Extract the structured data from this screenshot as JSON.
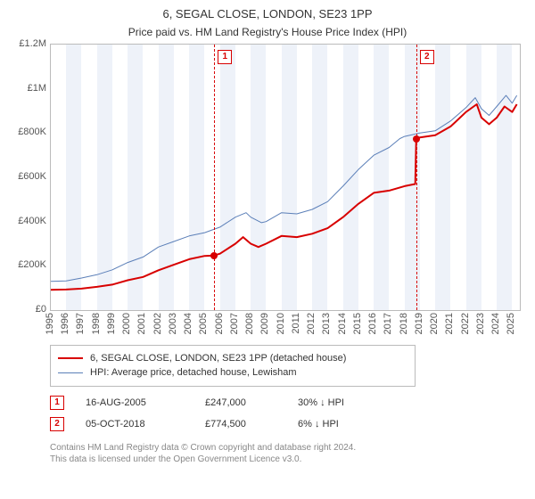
{
  "title": "6, SEGAL CLOSE, LONDON, SE23 1PP",
  "subtitle": "Price paid vs. HM Land Registry's House Price Index (HPI)",
  "chart": {
    "type": "line",
    "background_color": "#ffffff",
    "band_color": "#eef2f9",
    "grid_color": "#bbbbbb",
    "axis_text_color": "#555555",
    "axis_fontsize": 11,
    "xlim": [
      1995,
      2025.5
    ],
    "ylim": [
      0,
      1200000
    ],
    "x_ticks": [
      1995,
      1996,
      1997,
      1998,
      1999,
      2000,
      2001,
      2002,
      2003,
      2004,
      2005,
      2006,
      2007,
      2008,
      2009,
      2010,
      2011,
      2012,
      2013,
      2014,
      2015,
      2016,
      2017,
      2018,
      2019,
      2020,
      2021,
      2022,
      2023,
      2024,
      2025
    ],
    "y_ticks": [
      {
        "v": 0,
        "label": "£0"
      },
      {
        "v": 200000,
        "label": "£200K"
      },
      {
        "v": 400000,
        "label": "£400K"
      },
      {
        "v": 600000,
        "label": "£600K"
      },
      {
        "v": 800000,
        "label": "£800K"
      },
      {
        "v": 1000000,
        "label": "£1M"
      },
      {
        "v": 1200000,
        "label": "£1.2M"
      }
    ],
    "series": [
      {
        "id": "property",
        "label": "6, SEGAL CLOSE, LONDON, SE23 1PP (detached house)",
        "color": "#d80000",
        "width": 2,
        "points": [
          [
            1995,
            92000
          ],
          [
            1996,
            93000
          ],
          [
            1997,
            97000
          ],
          [
            1998,
            105000
          ],
          [
            1999,
            115000
          ],
          [
            2000,
            135000
          ],
          [
            2001,
            150000
          ],
          [
            2002,
            180000
          ],
          [
            2003,
            205000
          ],
          [
            2004,
            230000
          ],
          [
            2005,
            245000
          ],
          [
            2005.63,
            247000
          ],
          [
            2006,
            255000
          ],
          [
            2007,
            300000
          ],
          [
            2007.5,
            330000
          ],
          [
            2008,
            300000
          ],
          [
            2008.5,
            285000
          ],
          [
            2009,
            300000
          ],
          [
            2010,
            335000
          ],
          [
            2011,
            330000
          ],
          [
            2012,
            345000
          ],
          [
            2013,
            370000
          ],
          [
            2014,
            420000
          ],
          [
            2015,
            480000
          ],
          [
            2016,
            530000
          ],
          [
            2017,
            540000
          ],
          [
            2018,
            560000
          ],
          [
            2018.7,
            570000
          ],
          [
            2018.76,
            774500
          ],
          [
            2019,
            780000
          ],
          [
            2020,
            790000
          ],
          [
            2021,
            830000
          ],
          [
            2022,
            895000
          ],
          [
            2022.7,
            930000
          ],
          [
            2023,
            870000
          ],
          [
            2023.5,
            840000
          ],
          [
            2024,
            870000
          ],
          [
            2024.5,
            920000
          ],
          [
            2025,
            895000
          ],
          [
            2025.3,
            930000
          ]
        ]
      },
      {
        "id": "hpi",
        "label": "HPI: Average price, detached house, Lewisham",
        "color": "#5b7fb8",
        "width": 1,
        "points": [
          [
            1995,
            130000
          ],
          [
            1996,
            132000
          ],
          [
            1997,
            145000
          ],
          [
            1998,
            160000
          ],
          [
            1999,
            182000
          ],
          [
            2000,
            215000
          ],
          [
            2001,
            240000
          ],
          [
            2002,
            285000
          ],
          [
            2003,
            310000
          ],
          [
            2004,
            335000
          ],
          [
            2005,
            350000
          ],
          [
            2006,
            375000
          ],
          [
            2007,
            420000
          ],
          [
            2007.7,
            440000
          ],
          [
            2008,
            420000
          ],
          [
            2008.7,
            395000
          ],
          [
            2009,
            400000
          ],
          [
            2010,
            440000
          ],
          [
            2011,
            435000
          ],
          [
            2012,
            455000
          ],
          [
            2013,
            490000
          ],
          [
            2014,
            560000
          ],
          [
            2015,
            635000
          ],
          [
            2016,
            700000
          ],
          [
            2017,
            735000
          ],
          [
            2017.7,
            775000
          ],
          [
            2018,
            785000
          ],
          [
            2019,
            800000
          ],
          [
            2020,
            810000
          ],
          [
            2021,
            855000
          ],
          [
            2022,
            915000
          ],
          [
            2022.6,
            960000
          ],
          [
            2023,
            910000
          ],
          [
            2023.5,
            880000
          ],
          [
            2024,
            920000
          ],
          [
            2024.6,
            970000
          ],
          [
            2025,
            935000
          ],
          [
            2025.3,
            970000
          ]
        ]
      }
    ],
    "markers": [
      {
        "n": "1",
        "x": 2005.63,
        "price": 247000
      },
      {
        "n": "2",
        "x": 2018.76,
        "price": 774500
      }
    ],
    "marker_color": "#d80000",
    "marker_box_bg": "#ffffff",
    "sale_dot_color": "#d80000"
  },
  "legend": {
    "items": [
      {
        "color": "#d80000",
        "width": 2,
        "label": "6, SEGAL CLOSE, LONDON, SE23 1PP (detached house)"
      },
      {
        "color": "#5b7fb8",
        "width": 1,
        "label": "HPI: Average price, detached house, Lewisham"
      }
    ]
  },
  "sales": [
    {
      "n": "1",
      "date": "16-AUG-2005",
      "price": "£247,000",
      "rel": "30% ↓ HPI"
    },
    {
      "n": "2",
      "date": "05-OCT-2018",
      "price": "£774,500",
      "rel": "6% ↓ HPI"
    }
  ],
  "attribution": {
    "line1": "Contains HM Land Registry data © Crown copyright and database right 2024.",
    "line2": "This data is licensed under the Open Government Licence v3.0."
  }
}
